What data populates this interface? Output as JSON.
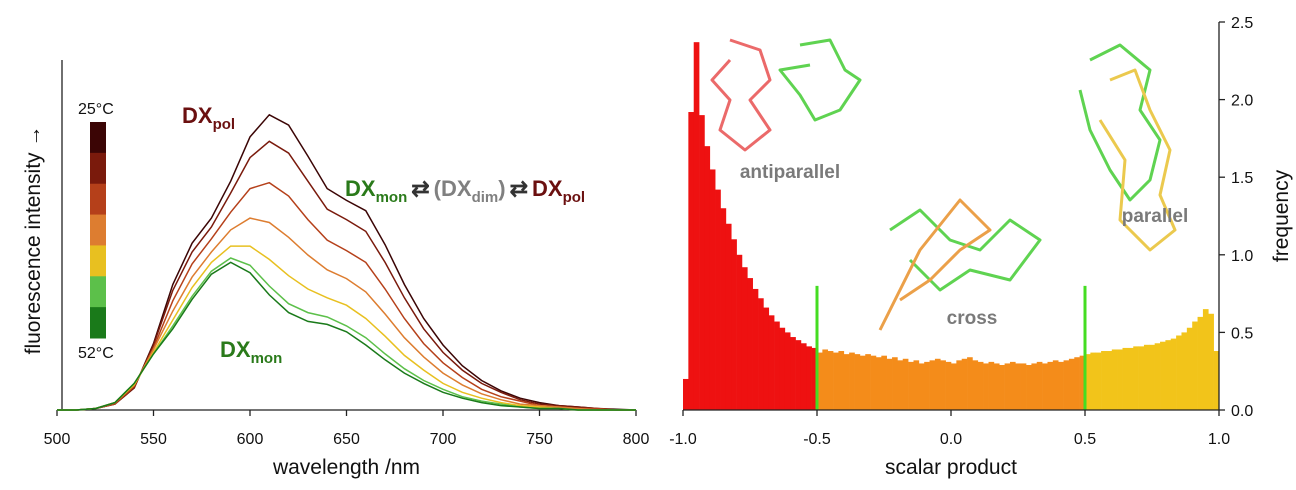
{
  "chart_data": [
    {
      "type": "line",
      "xlabel": "wavelength /nm",
      "ylabel": "fluorescence intensity →",
      "x": [
        500,
        510,
        520,
        530,
        540,
        550,
        560,
        570,
        580,
        590,
        600,
        610,
        620,
        630,
        640,
        650,
        660,
        670,
        680,
        690,
        700,
        710,
        720,
        730,
        740,
        750,
        760,
        770,
        780,
        790,
        800
      ],
      "xlim": [
        500,
        800
      ],
      "xticks": [
        500,
        550,
        600,
        650,
        700,
        750,
        800
      ],
      "ylim": [
        0,
        2.1
      ],
      "series": [
        {
          "color": "#3b0505",
          "values": [
            0,
            0,
            0.01,
            0.04,
            0.15,
            0.45,
            0.85,
            1.13,
            1.3,
            1.55,
            1.85,
            2.0,
            1.93,
            1.72,
            1.5,
            1.42,
            1.35,
            1.12,
            0.85,
            0.62,
            0.44,
            0.3,
            0.2,
            0.13,
            0.08,
            0.05,
            0.03,
            0.02,
            0.01,
            0.005,
            0
          ]
        },
        {
          "color": "#7a1a0c",
          "values": [
            0,
            0,
            0.01,
            0.04,
            0.15,
            0.44,
            0.81,
            1.07,
            1.24,
            1.47,
            1.71,
            1.82,
            1.74,
            1.55,
            1.36,
            1.29,
            1.21,
            1.0,
            0.76,
            0.55,
            0.39,
            0.27,
            0.18,
            0.12,
            0.07,
            0.04,
            0.03,
            0.02,
            0.01,
            0,
            0
          ]
        },
        {
          "color": "#b5401a",
          "values": [
            0,
            0,
            0.01,
            0.04,
            0.16,
            0.42,
            0.74,
            0.99,
            1.16,
            1.34,
            1.5,
            1.54,
            1.45,
            1.29,
            1.15,
            1.08,
            1.0,
            0.82,
            0.62,
            0.45,
            0.32,
            0.22,
            0.14,
            0.09,
            0.06,
            0.03,
            0.02,
            0.01,
            0.01,
            0,
            0
          ]
        },
        {
          "color": "#dd7d30",
          "values": [
            0,
            0,
            0.01,
            0.05,
            0.17,
            0.41,
            0.67,
            0.9,
            1.07,
            1.22,
            1.3,
            1.27,
            1.17,
            1.05,
            0.95,
            0.89,
            0.8,
            0.65,
            0.49,
            0.36,
            0.25,
            0.17,
            0.11,
            0.07,
            0.04,
            0.03,
            0.02,
            0.01,
            0,
            0,
            0
          ]
        },
        {
          "color": "#e8c020",
          "values": [
            0,
            0,
            0.01,
            0.05,
            0.17,
            0.39,
            0.61,
            0.83,
            1.0,
            1.11,
            1.11,
            1.02,
            0.91,
            0.82,
            0.76,
            0.71,
            0.62,
            0.5,
            0.37,
            0.27,
            0.18,
            0.12,
            0.08,
            0.05,
            0.03,
            0.02,
            0.01,
            0,
            0,
            0,
            0
          ]
        },
        {
          "color": "#5cc04a",
          "values": [
            0,
            0,
            0.01,
            0.05,
            0.18,
            0.38,
            0.57,
            0.77,
            0.94,
            1.03,
            0.98,
            0.84,
            0.72,
            0.66,
            0.63,
            0.57,
            0.49,
            0.38,
            0.28,
            0.2,
            0.14,
            0.09,
            0.06,
            0.04,
            0.02,
            0.01,
            0.01,
            0,
            0,
            0,
            0
          ]
        },
        {
          "color": "#1a7a1a",
          "values": [
            0,
            0,
            0.01,
            0.05,
            0.18,
            0.38,
            0.55,
            0.75,
            0.92,
            1.0,
            0.93,
            0.78,
            0.66,
            0.6,
            0.58,
            0.53,
            0.44,
            0.34,
            0.25,
            0.18,
            0.12,
            0.08,
            0.05,
            0.03,
            0.02,
            0.01,
            0.01,
            0,
            0,
            0,
            0
          ]
        }
      ],
      "colorbar_labels": [
        "25°C",
        "52°C"
      ],
      "label_pol": {
        "text": "DX",
        "sub": "pol",
        "color": "#6b1010"
      },
      "label_mon": {
        "text": "DX",
        "sub": "mon",
        "color": "#2a7a1a"
      },
      "equation": [
        {
          "text": "DX",
          "color": "#2a7a1a",
          "sub": false
        },
        {
          "text": "mon",
          "color": "#2a7a1a",
          "sub": true
        },
        {
          "text": "⇄",
          "color": "#333333",
          "sub": false
        },
        {
          "text": "(DX",
          "color": "#808080",
          "sub": false
        },
        {
          "text": "dim",
          "color": "#808080",
          "sub": true
        },
        {
          "text": ")",
          "color": "#808080",
          "sub": false
        },
        {
          "text": "⇄",
          "color": "#333333",
          "sub": false
        },
        {
          "text": "DX",
          "color": "#6b1010",
          "sub": false
        },
        {
          "text": "pol",
          "color": "#6b1010",
          "sub": true
        }
      ]
    },
    {
      "type": "histogram",
      "xlabel": "scalar product",
      "ylabel": "frequency",
      "bins": [
        -1.0,
        -0.98,
        -0.96,
        -0.94,
        -0.92,
        -0.9,
        -0.88,
        -0.86,
        -0.84,
        -0.82,
        -0.8,
        -0.78,
        -0.76,
        -0.74,
        -0.72,
        -0.7,
        -0.68,
        -0.66,
        -0.64,
        -0.62,
        -0.6,
        -0.58,
        -0.56,
        -0.54,
        -0.52,
        -0.5,
        -0.48,
        -0.46,
        -0.44,
        -0.42,
        -0.4,
        -0.38,
        -0.36,
        -0.34,
        -0.32,
        -0.3,
        -0.28,
        -0.26,
        -0.24,
        -0.22,
        -0.2,
        -0.18,
        -0.16,
        -0.14,
        -0.12,
        -0.1,
        -0.08,
        -0.06,
        -0.04,
        -0.02,
        0,
        0.02,
        0.04,
        0.06,
        0.08,
        0.1,
        0.12,
        0.14,
        0.16,
        0.18,
        0.2,
        0.22,
        0.24,
        0.26,
        0.28,
        0.3,
        0.32,
        0.34,
        0.36,
        0.38,
        0.4,
        0.42,
        0.44,
        0.46,
        0.48,
        0.5,
        0.52,
        0.54,
        0.56,
        0.58,
        0.6,
        0.62,
        0.64,
        0.66,
        0.68,
        0.7,
        0.72,
        0.74,
        0.76,
        0.78,
        0.8,
        0.82,
        0.84,
        0.86,
        0.88,
        0.9,
        0.92,
        0.94,
        0.96,
        0.98,
        1.0
      ],
      "counts": [
        0.2,
        1.92,
        2.37,
        1.9,
        1.7,
        1.55,
        1.42,
        1.3,
        1.2,
        1.1,
        1.0,
        0.92,
        0.85,
        0.78,
        0.72,
        0.66,
        0.61,
        0.57,
        0.53,
        0.5,
        0.47,
        0.45,
        0.43,
        0.41,
        0.4,
        0.37,
        0.39,
        0.38,
        0.37,
        0.38,
        0.36,
        0.37,
        0.36,
        0.35,
        0.36,
        0.35,
        0.34,
        0.35,
        0.33,
        0.34,
        0.32,
        0.33,
        0.31,
        0.32,
        0.3,
        0.31,
        0.32,
        0.33,
        0.32,
        0.31,
        0.3,
        0.32,
        0.33,
        0.34,
        0.32,
        0.31,
        0.3,
        0.31,
        0.3,
        0.29,
        0.3,
        0.31,
        0.3,
        0.3,
        0.29,
        0.3,
        0.31,
        0.3,
        0.31,
        0.32,
        0.31,
        0.32,
        0.33,
        0.34,
        0.35,
        0.36,
        0.37,
        0.37,
        0.38,
        0.38,
        0.39,
        0.39,
        0.4,
        0.4,
        0.41,
        0.41,
        0.42,
        0.42,
        0.43,
        0.44,
        0.45,
        0.46,
        0.48,
        0.5,
        0.53,
        0.57,
        0.6,
        0.65,
        0.62,
        0.38
      ],
      "region_edges": [
        -0.5,
        0.5
      ],
      "region_colors": [
        "#ee1111",
        "#f48c1a",
        "#f2c41a"
      ],
      "divider_height": 0.8,
      "divider_color": "#44dd22",
      "xlim": [
        -1.0,
        1.0
      ],
      "xticks": [
        {
          "value": -1.0,
          "label": "-1.0"
        },
        -0.5,
        {
          "value": 0,
          "label": "0.0"
        },
        0.5,
        {
          "value": 1.0,
          "label": "1.0"
        }
      ],
      "ylim": [
        0,
        2.5
      ],
      "yticks": [
        {
          "value": 0,
          "label": "0.0"
        },
        0.5,
        {
          "value": 1.0,
          "label": "1.0"
        },
        1.5,
        {
          "value": 2.0,
          "label": "2.0"
        },
        2.5
      ],
      "annotations": [
        "antiparallel",
        "cross",
        "parallel"
      ]
    }
  ]
}
